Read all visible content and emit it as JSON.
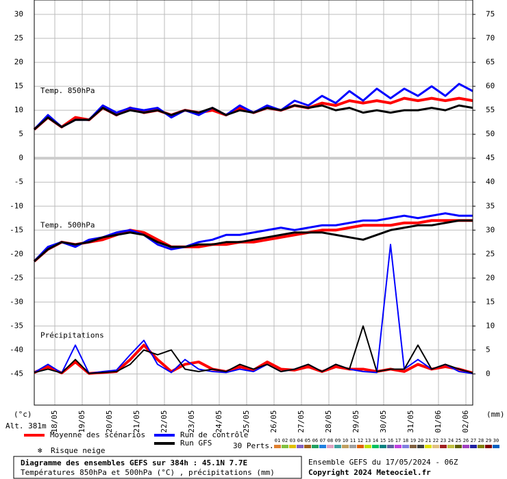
{
  "chart_data": {
    "type": "line",
    "title": "Diagramme des ensembles GEFS sur 384h : 45.1N 7.7E",
    "subtitle": "Températures 850hPa et 500hPa (°C) , précipitations (mm)",
    "run_label": "Ensemble GEFS du 17/05/2024 - 06Z",
    "copyright": "Copyright 2024 Meteociel.fr",
    "y_label": "(°c)",
    "y2_label": "(mm)",
    "altitude": "Alt. 381m",
    "snow_label": "Risque neige",
    "members_label": "30 Perts.",
    "annotations": [
      {
        "text": "Temp. 850hPa",
        "y": 14
      },
      {
        "text": "Temp. 500hPa",
        "y": -14
      },
      {
        "text": "Précipitations",
        "y": -37
      }
    ],
    "xlim": [
      0,
      384
    ],
    "xticks": [
      {
        "value": 18,
        "label": "18/05"
      },
      {
        "value": 42,
        "label": "19/05"
      },
      {
        "value": 66,
        "label": "20/05"
      },
      {
        "value": 90,
        "label": "21/05"
      },
      {
        "value": 114,
        "label": "22/05"
      },
      {
        "value": 138,
        "label": "23/05"
      },
      {
        "value": 162,
        "label": "24/05"
      },
      {
        "value": 186,
        "label": "25/05"
      },
      {
        "value": 210,
        "label": "26/05"
      },
      {
        "value": 234,
        "label": "27/05"
      },
      {
        "value": 258,
        "label": "28/05"
      },
      {
        "value": 282,
        "label": "29/05"
      },
      {
        "value": 306,
        "label": "30/05"
      },
      {
        "value": 330,
        "label": "31/05"
      },
      {
        "value": 354,
        "label": "01/06"
      },
      {
        "value": 378,
        "label": "02/06"
      }
    ],
    "ylim": [
      -51.5,
      33
    ],
    "yticks": [
      -45,
      -40,
      -35,
      -30,
      -25,
      -20,
      -15,
      -10,
      -5,
      0,
      5,
      10,
      15,
      20,
      25,
      30
    ],
    "y2lim": [
      -6.5,
      78
    ],
    "y2ticks": [
      0,
      5,
      10,
      15,
      20,
      25,
      30,
      35,
      40,
      45,
      50,
      55,
      60,
      65,
      70,
      75
    ],
    "divider": 0,
    "x": [
      0,
      12,
      24,
      36,
      48,
      60,
      72,
      84,
      96,
      108,
      120,
      132,
      144,
      156,
      168,
      180,
      192,
      204,
      216,
      228,
      240,
      252,
      264,
      276,
      288,
      300,
      312,
      324,
      336,
      348,
      360,
      372,
      384
    ],
    "series": [
      {
        "name": "Moyenne des scénarios",
        "color": "#ff0000",
        "width": 4,
        "values": [
          6,
          8.5,
          6.5,
          8.5,
          8,
          10.5,
          9,
          10.5,
          9.5,
          10,
          9,
          10,
          9.5,
          10,
          9,
          10.5,
          9.5,
          10.5,
          10,
          11,
          10.5,
          11.5,
          11,
          12,
          11.5,
          12,
          11.5,
          12.5,
          12,
          12.5,
          12,
          12.5,
          12
        ]
      },
      {
        "name": "Run de contrôle",
        "color": "#0000ff",
        "width": 3,
        "values": [
          6,
          9,
          6.5,
          8,
          8,
          11,
          9.5,
          10.5,
          10,
          10.5,
          8.5,
          10,
          9,
          10.5,
          9,
          11,
          9.5,
          11,
          10,
          12,
          11,
          13,
          11.5,
          14,
          12,
          14.5,
          12.5,
          14.5,
          13,
          15,
          13,
          15.5,
          14
        ]
      },
      {
        "name": "Run GFS",
        "color": "#000000",
        "width": 3,
        "values": [
          6,
          8.5,
          6.5,
          8,
          8,
          10.5,
          9,
          10,
          9.5,
          10,
          9,
          10,
          9.5,
          10.5,
          9,
          10,
          9.5,
          10.5,
          10,
          11,
          10.5,
          11,
          10,
          10.5,
          9.5,
          10,
          9.5,
          10,
          10,
          10.5,
          10,
          11,
          10.5
        ]
      },
      {
        "name": "Moyenne des scénarios",
        "color": "#ff0000",
        "width": 4,
        "values": [
          -21.5,
          -19,
          -17.5,
          -18,
          -17.5,
          -17,
          -16,
          -15,
          -15.5,
          -17,
          -18.5,
          -18.5,
          -18.5,
          -18,
          -18,
          -17.5,
          -17.5,
          -17,
          -16.5,
          -16,
          -15.5,
          -15,
          -15,
          -14.5,
          -14,
          -14,
          -14,
          -13.5,
          -13.5,
          -13,
          -13,
          -13,
          -13
        ]
      },
      {
        "name": "Run de contrôle",
        "color": "#0000ff",
        "width": 3,
        "values": [
          -21.5,
          -18.5,
          -17.5,
          -18.5,
          -17,
          -16.5,
          -15.5,
          -15,
          -16,
          -18,
          -19,
          -18.5,
          -17.5,
          -17,
          -16,
          -16,
          -15.5,
          -15,
          -14.5,
          -15,
          -14.5,
          -14,
          -14,
          -13.5,
          -13,
          -13,
          -12.5,
          -12,
          -12.5,
          -12,
          -11.5,
          -12,
          -12
        ]
      },
      {
        "name": "Run GFS",
        "color": "#000000",
        "width": 3,
        "values": [
          -21.5,
          -19,
          -17.5,
          -18,
          -17.5,
          -16.5,
          -16,
          -15.5,
          -16,
          -17.5,
          -18.5,
          -18.5,
          -18,
          -18,
          -17.5,
          -17.5,
          -17,
          -16.5,
          -16,
          -15.5,
          -15.5,
          -15.5,
          -16,
          -16.5,
          -17,
          -16,
          -15,
          -14.5,
          -14,
          -14,
          -13.5,
          -13,
          -13
        ]
      },
      {
        "name": "Moyenne des scénarios",
        "color": "#ff0000",
        "width": 4,
        "axis": "y2",
        "values": [
          0.3,
          1.5,
          0.2,
          2.5,
          0.1,
          0.3,
          0.5,
          3,
          6,
          3,
          0.5,
          2,
          2.5,
          1,
          0.5,
          1.5,
          0.8,
          2.5,
          1,
          0.8,
          1.5,
          0.5,
          1.5,
          1,
          1,
          0.5,
          1,
          0.5,
          2,
          1,
          1.5,
          1,
          0.2
        ]
      },
      {
        "name": "Run de contrôle",
        "color": "#0000ff",
        "width": 2,
        "axis": "y2",
        "values": [
          0.3,
          2,
          0.2,
          6,
          0.1,
          0.5,
          0.8,
          4,
          7,
          2,
          0.3,
          3,
          1,
          0.5,
          0.3,
          1,
          0.5,
          2,
          0.5,
          1,
          2,
          0.5,
          2,
          1,
          0.5,
          0.3,
          27,
          1,
          3,
          1,
          2,
          0.5,
          0.1
        ]
      },
      {
        "name": "Run GFS",
        "color": "#000000",
        "width": 2,
        "axis": "y2",
        "values": [
          0.3,
          1,
          0.2,
          3,
          0.1,
          0.3,
          0.5,
          2,
          5,
          4,
          5,
          1,
          0.5,
          1,
          0.5,
          2,
          1,
          2,
          0.5,
          1,
          2,
          0.5,
          2,
          1,
          10,
          0.5,
          1,
          1,
          6,
          1,
          2,
          1,
          0.2
        ]
      }
    ],
    "members": [
      {
        "label": "01",
        "color": "#e08030"
      },
      {
        "label": "02",
        "color": "#80c040"
      },
      {
        "label": "03",
        "color": "#e0c000"
      },
      {
        "label": "04",
        "color": "#8060c0"
      },
      {
        "label": "05",
        "color": "#a06020"
      },
      {
        "label": "06",
        "color": "#20a060"
      },
      {
        "label": "07",
        "color": "#2080e0"
      },
      {
        "label": "08",
        "color": "#e0a0c0"
      },
      {
        "label": "09",
        "color": "#40a0a0"
      },
      {
        "label": "10",
        "color": "#c0a060"
      },
      {
        "label": "11",
        "color": "#a0a0a0"
      },
      {
        "label": "12",
        "color": "#e06000"
      },
      {
        "label": "13",
        "color": "#c0e000"
      },
      {
        "label": "14",
        "color": "#00c060"
      },
      {
        "label": "15",
        "color": "#008080"
      },
      {
        "label": "16",
        "color": "#6060a0"
      },
      {
        "label": "17",
        "color": "#c040e0"
      },
      {
        "label": "18",
        "color": "#8080e0"
      },
      {
        "label": "19",
        "color": "#806040"
      },
      {
        "label": "20",
        "color": "#404040"
      },
      {
        "label": "21",
        "color": "#e0e000"
      },
      {
        "label": "22",
        "color": "#e0c080"
      },
      {
        "label": "23",
        "color": "#a02020"
      },
      {
        "label": "24",
        "color": "#c0c040"
      },
      {
        "label": "25",
        "color": "#606000"
      },
      {
        "label": "26",
        "color": "#a040c0"
      },
      {
        "label": "27",
        "color": "#2020a0"
      },
      {
        "label": "28",
        "color": "#808000"
      },
      {
        "label": "29",
        "color": "#800000"
      },
      {
        "label": "30",
        "color": "#0060c0"
      }
    ]
  }
}
